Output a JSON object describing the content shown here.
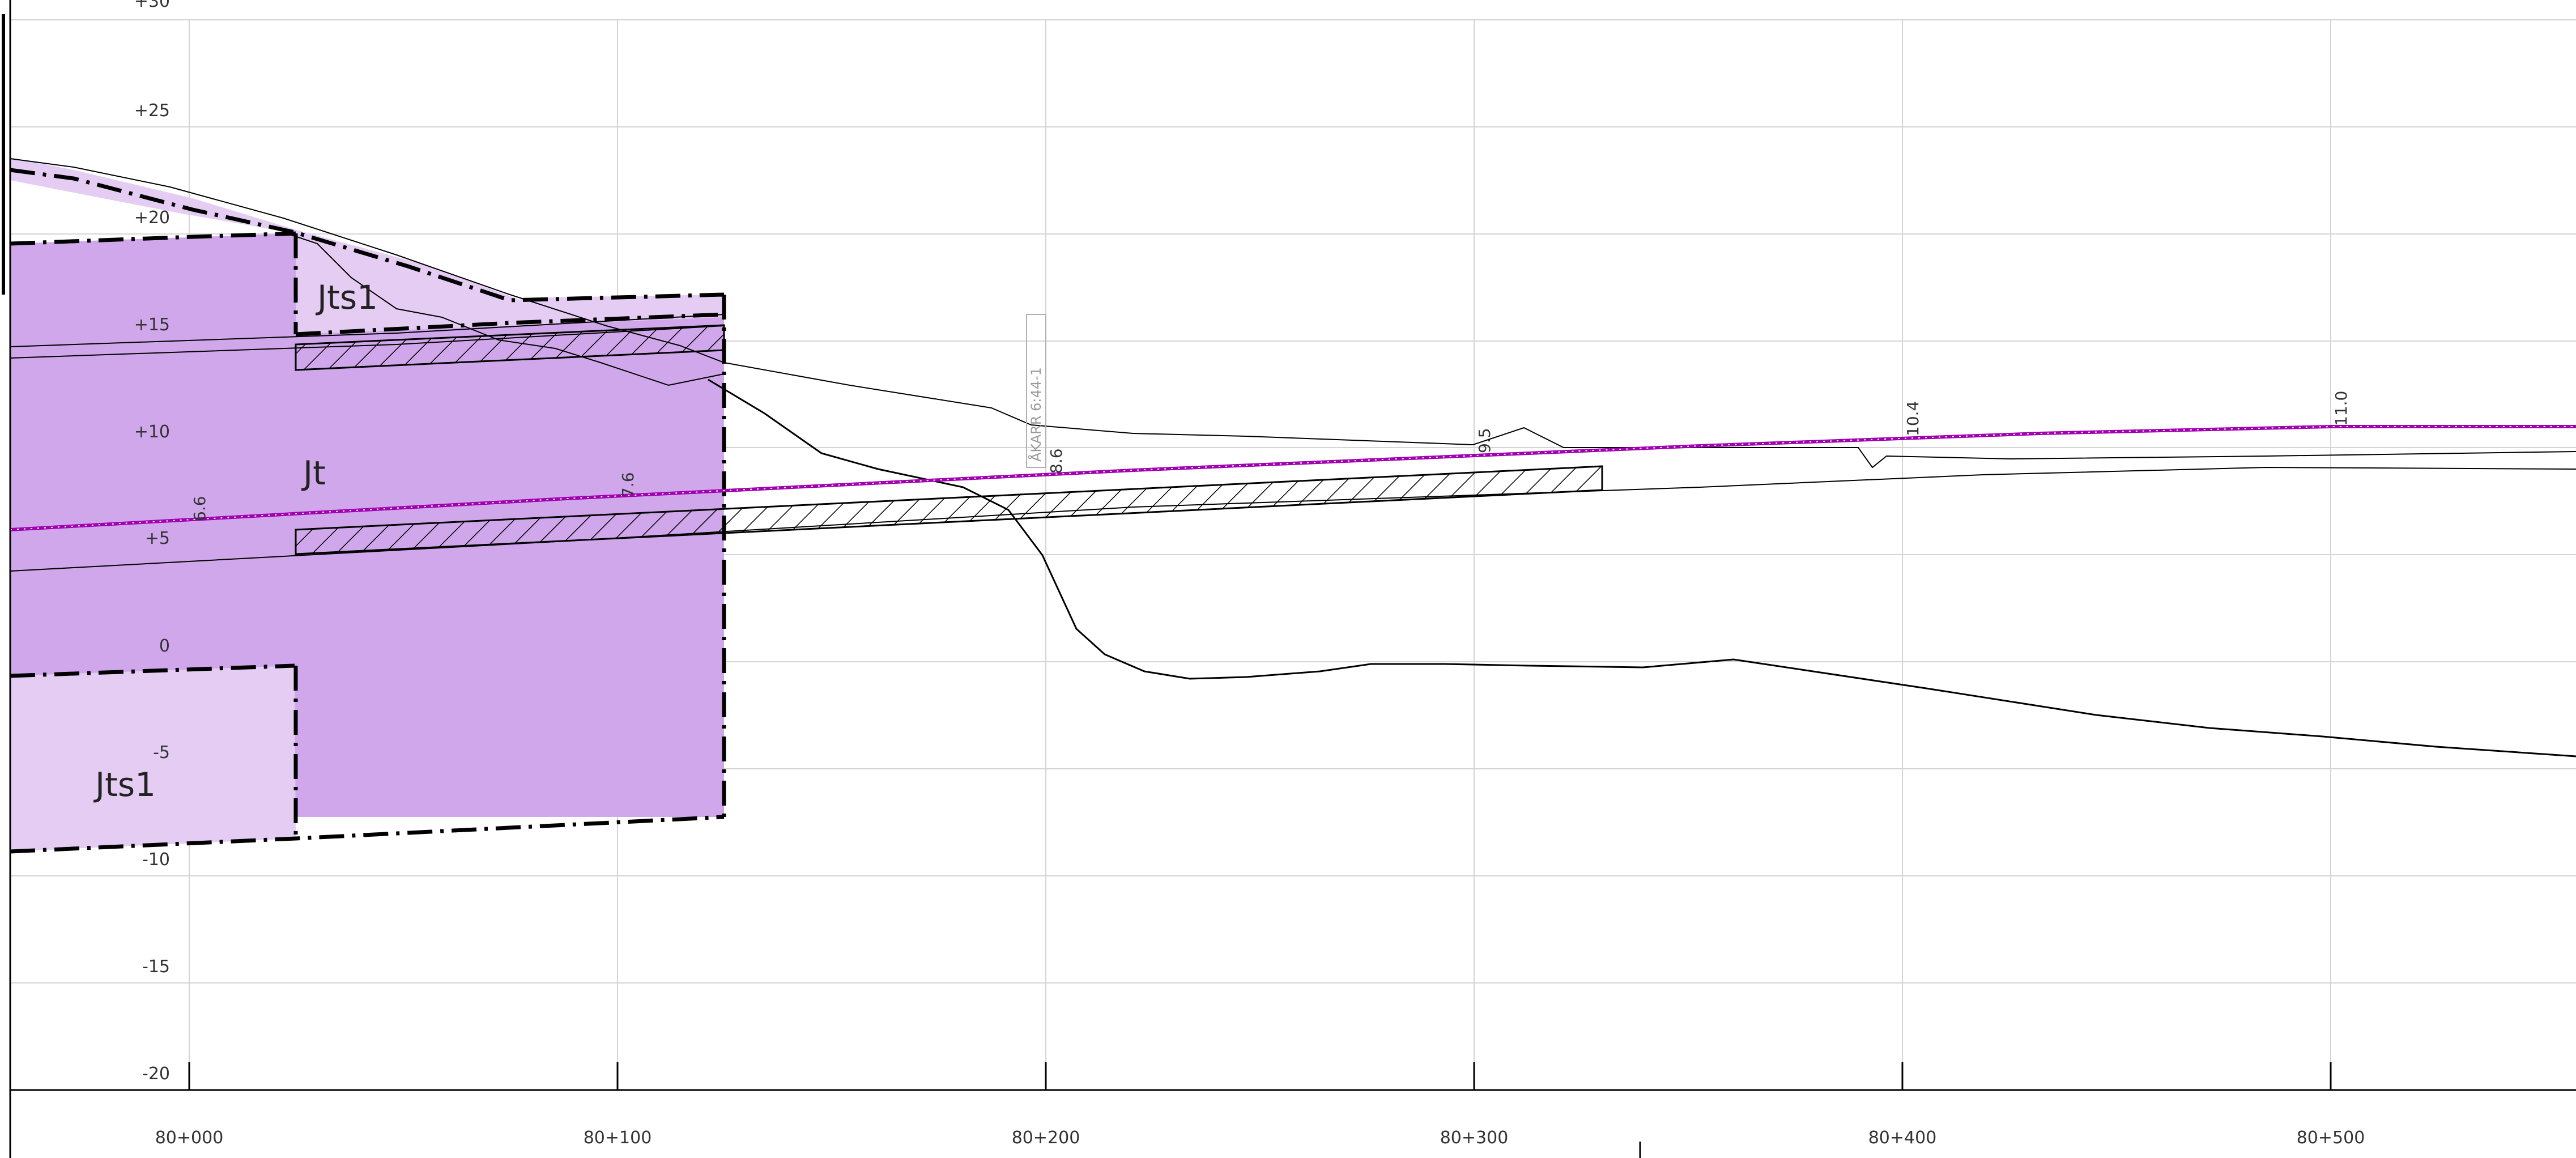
{
  "profile": {
    "y_axis_ticks": [
      "+30",
      "+25",
      "+20",
      "+15",
      "+10",
      "+5",
      "0",
      "-5",
      "-10",
      "-15",
      "-20"
    ],
    "chainage_ticks": [
      "80+000",
      "80+100",
      "80+200",
      "80+300",
      "80+400",
      "80+500"
    ],
    "zone_labels": {
      "jts1_upper": "Jts1",
      "jt": "Jt",
      "jts1_lower": "Jts1"
    },
    "design_elevations": [
      "6.6",
      "7.6",
      "8.6",
      "9.5",
      "10.4",
      "11.0"
    ],
    "stamp_text": "ÅKARR 6:44-1",
    "colors": {
      "rock_zone": "#cfa7ea",
      "soft_zone": "#e4ccf3",
      "grade_line": "#a000b0",
      "grid": "#d4d4d4"
    }
  }
}
